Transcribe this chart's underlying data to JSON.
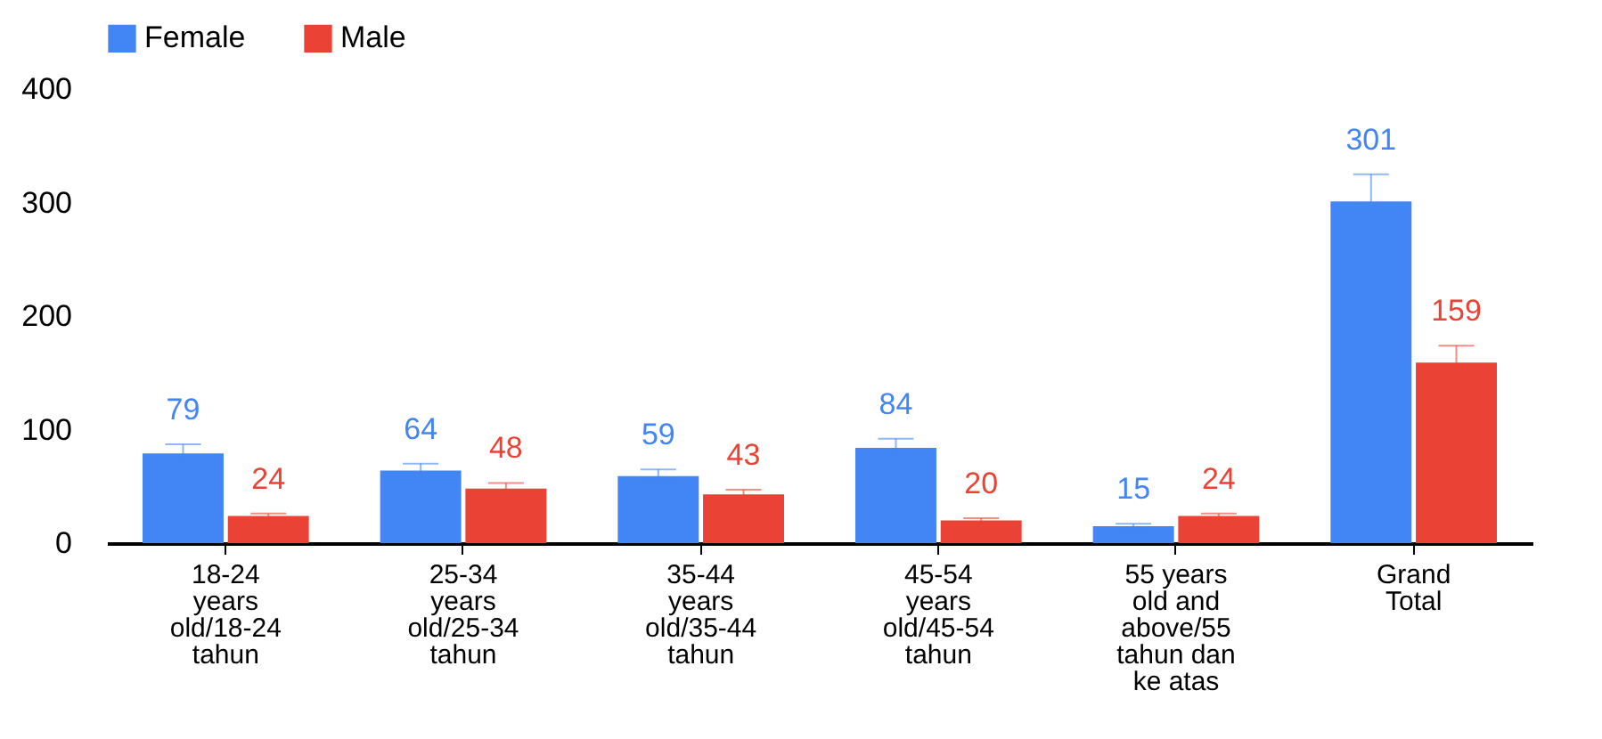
{
  "chart_data": {
    "type": "bar",
    "categories": [
      "18-24 years old/18-24 tahun",
      "25-34 years old/25-34 tahun",
      "35-44 years old/35-44 tahun",
      "45-54 years old/45-54 tahun",
      "55 years old and above/55 tahun dan ke atas",
      "Grand Total"
    ],
    "series": [
      {
        "name": "Female",
        "color": "#4285f4",
        "values": [
          79,
          64,
          59,
          84,
          15,
          301
        ],
        "errors": [
          8,
          6,
          6,
          8,
          2,
          24
        ]
      },
      {
        "name": "Male",
        "color": "#ea4335",
        "values": [
          24,
          48,
          43,
          20,
          24,
          159
        ],
        "errors": [
          2,
          5,
          4,
          2,
          2,
          15
        ]
      }
    ],
    "ylim": [
      0,
      400
    ],
    "yticks": [
      0,
      100,
      200,
      300,
      400
    ],
    "grid": false,
    "legend": "top",
    "data_labels": true
  }
}
